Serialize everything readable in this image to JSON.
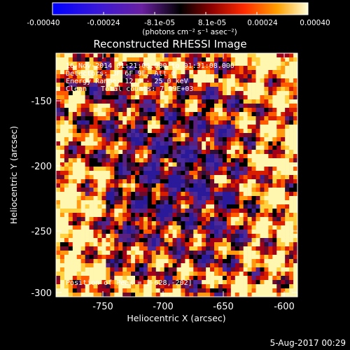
{
  "colorbar": {
    "tick_labels": [
      "-0.00040",
      "-0.00024",
      "-8.1e-05",
      "8.1e-05",
      "0.00024",
      "0.00040"
    ],
    "units_label": "(photons cm⁻² s⁻¹ asec⁻²)",
    "range": [
      -0.0004,
      0.0004
    ]
  },
  "plot": {
    "title": "Reconstructed RHESSI Image",
    "xlabel": "Heliocentric X (arcsec)",
    "ylabel": "Heliocentric Y (arcsec)",
    "xticks": [
      "-750",
      "-700",
      "-650",
      "-600"
    ],
    "yticks": [
      "-150",
      "-200",
      "-250",
      "-300"
    ],
    "xlim": [
      -785,
      -585
    ],
    "ylim": [
      -302,
      -118
    ]
  },
  "annotations": {
    "time_range": "16-Nov-2014 01:21:08.000 to 01:31:08.000",
    "detectors": "Detectors: 3F 6F 9F, Att 0",
    "energy_range": "Energy Range: 12.0 - 25.0 keV",
    "clean": "Clean",
    "total_counts": "Total counts: 7.59E+03",
    "peak": "Position of Peak = [-628,-202]"
  },
  "footer": {
    "date": "5-Aug-2017 00:29"
  }
}
